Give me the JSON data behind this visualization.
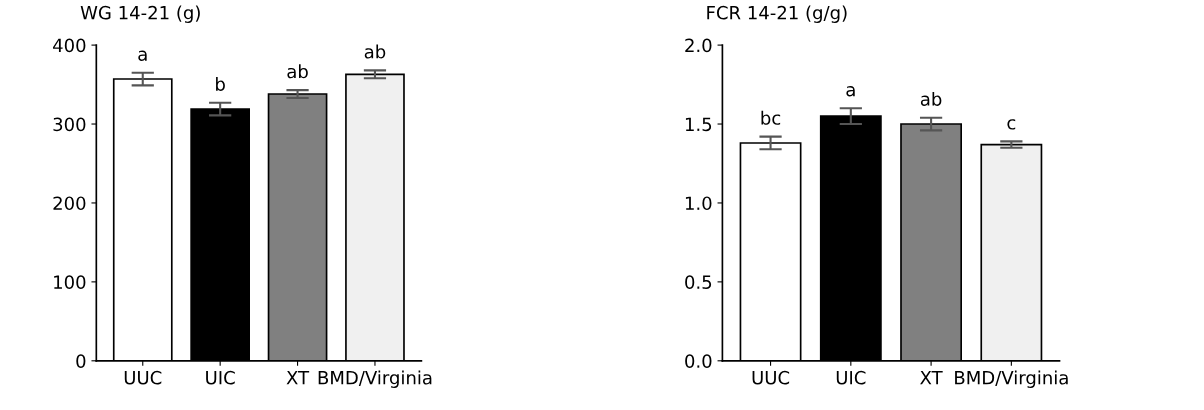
{
  "chart_data": [
    {
      "type": "bar",
      "title": "WG 14-21 (g)",
      "categories": [
        "UUC",
        "UIC",
        "XT",
        "BMD/Virginia"
      ],
      "values": [
        357,
        319,
        338,
        363
      ],
      "errors": [
        8,
        8,
        5,
        5
      ],
      "colors": [
        "#ffffff",
        "#000000",
        "#808080",
        "#f0f0f0"
      ],
      "ylim": [
        0,
        400
      ],
      "yticks": [
        0,
        100,
        200,
        300,
        400
      ],
      "grid": false,
      "legend": false,
      "annotations": [
        "a",
        "b",
        "ab",
        "ab"
      ]
    },
    {
      "type": "bar",
      "title": "FCR 14-21 (g/g)",
      "categories": [
        "UUC",
        "UIC",
        "XT",
        "BMD/Virginia"
      ],
      "values": [
        1.38,
        1.55,
        1.5,
        1.37
      ],
      "errors": [
        0.04,
        0.05,
        0.04,
        0.02
      ],
      "colors": [
        "#ffffff",
        "#000000",
        "#808080",
        "#f0f0f0"
      ],
      "ylim": [
        0,
        2.0
      ],
      "yticks": [
        {
          "value": 0,
          "label": "0.0"
        },
        {
          "value": 0.5,
          "label": "0.5"
        },
        {
          "value": 1.0,
          "label": "1.0"
        },
        {
          "value": 1.5,
          "label": "1.5"
        },
        {
          "value": 2.0,
          "label": "2.0"
        }
      ],
      "grid": false,
      "legend": false,
      "annotations": [
        "bc",
        "a",
        "ab",
        "c"
      ]
    }
  ]
}
